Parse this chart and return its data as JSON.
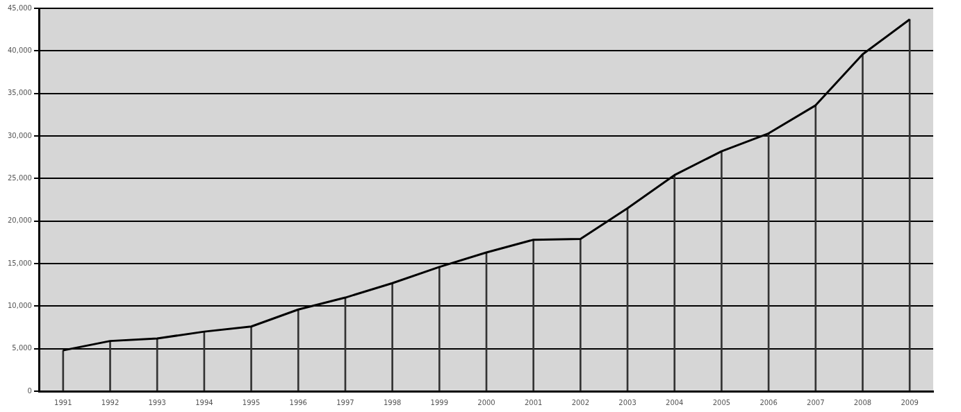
{
  "chart_data": {
    "type": "line",
    "categories": [
      "1991",
      "1992",
      "1993",
      "1994",
      "1995",
      "1996",
      "1997",
      "1998",
      "1999",
      "2000",
      "2001",
      "2002",
      "2003",
      "2004",
      "2005",
      "2006",
      "2007",
      "2008",
      "2009"
    ],
    "series": [
      {
        "color": "#000000",
        "values": [
          4800,
          5900,
          6200,
          7000,
          7600,
          9600,
          11000,
          12700,
          14600,
          16300,
          17800,
          17900,
          21500,
          25400,
          28200,
          30300,
          33600,
          39600,
          43700
        ]
      },
      {
        "type": "bar",
        "color": "#333333",
        "values": [
          4800,
          5900,
          6200,
          7000,
          7600,
          9600,
          11000,
          12700,
          14600,
          16300,
          17800,
          17900,
          21500,
          25400,
          28200,
          30300,
          33600,
          39600,
          43700
        ]
      }
    ],
    "ylim": [
      0,
      45000
    ],
    "yticks": [
      0,
      {
        "value": 5000,
        "label": "5,000"
      },
      {
        "value": 10000,
        "label": "10,000"
      },
      {
        "value": 15000,
        "label": "15,000"
      },
      {
        "value": 20000,
        "label": "20,000"
      },
      {
        "value": 25000,
        "label": "25,000"
      },
      {
        "value": 30000,
        "label": "30,000"
      },
      {
        "value": 35000,
        "label": "35,000"
      },
      {
        "value": 40000,
        "label": "40,000"
      },
      {
        "value": 45000,
        "label": "45,000"
      }
    ],
    "grid": "y",
    "legend": false,
    "marker": "none",
    "line_style": "solid"
  }
}
